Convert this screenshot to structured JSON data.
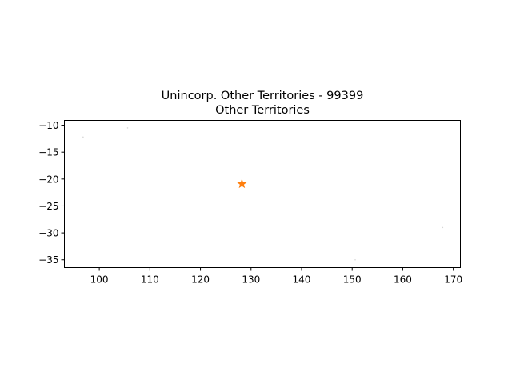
{
  "chart_data": {
    "type": "scatter",
    "title": "Unincorp. Other Territories - 99399",
    "subtitle": "Other Territories",
    "xlabel": "",
    "ylabel": "",
    "xlim": [
      93.1,
      171.4
    ],
    "ylim": [
      -36.45,
      -9.1
    ],
    "x_ticks": [
      100,
      110,
      120,
      130,
      140,
      150,
      160,
      170
    ],
    "y_ticks": [
      -10,
      -15,
      -20,
      -25,
      -30,
      -35
    ],
    "grid": false,
    "legend": "none",
    "faint_points": [
      {
        "x": 96.8,
        "y": -12.2
      },
      {
        "x": 105.6,
        "y": -10.5
      },
      {
        "x": 167.9,
        "y": -29.0
      },
      {
        "x": 150.6,
        "y": -35.0
      }
    ],
    "centroid": {
      "x": 128.2,
      "y": -20.9
    },
    "colors": {
      "centroid": "#ff7f0e",
      "faint_points": "#d6d6d6",
      "axes": "#000000"
    }
  }
}
